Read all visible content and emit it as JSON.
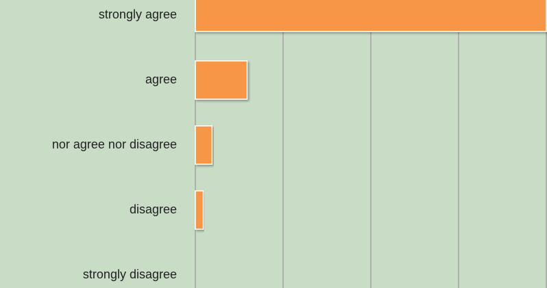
{
  "chart_data": {
    "type": "barh",
    "categories": [
      "strongly agree",
      "agree",
      "nor agree nor disagree",
      "disagree",
      "strongly disagree"
    ],
    "values": [
      40,
      5.9,
      1.9,
      0.9,
      0
    ],
    "color": "#f79646",
    "xlim": [
      0,
      40
    ],
    "xticks": [
      0,
      10,
      20,
      30,
      40
    ],
    "grid": true
  }
}
